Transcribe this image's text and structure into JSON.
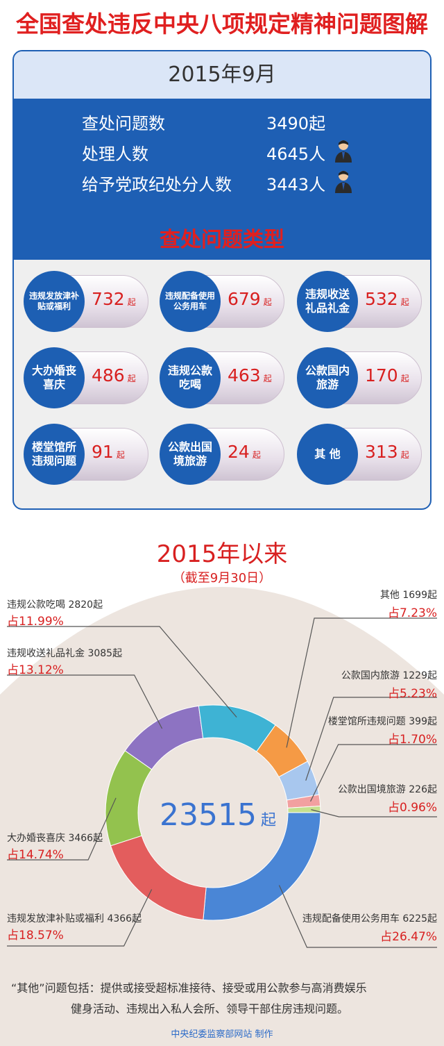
{
  "title": "全国查处违反中央八项规定精神问题图解",
  "month": {
    "label": "2015年9月",
    "stats": [
      {
        "label": "查处问题数",
        "value": "3490起",
        "icon": ""
      },
      {
        "label": "处理人数",
        "value": "4645人",
        "icon": "person-icon"
      },
      {
        "label": "给予党政纪处分人数",
        "value": "3443人",
        "icon": "person-icon"
      }
    ]
  },
  "types": {
    "title": "查处问题类型",
    "unit": "起",
    "items": [
      {
        "name": "违规发放津补贴或福利",
        "value": "732"
      },
      {
        "name": "违规配备使用公务用车",
        "value": "679"
      },
      {
        "name": "违规收送礼品礼金",
        "value": "532"
      },
      {
        "name": "大办婚丧喜庆",
        "value": "486"
      },
      {
        "name": "违规公款吃喝",
        "value": "463"
      },
      {
        "name": "公款国内旅游",
        "value": "170"
      },
      {
        "name": "楼堂馆所违规问题",
        "value": "91"
      },
      {
        "name": "公款出国境旅游",
        "value": "24"
      },
      {
        "name": "其 他",
        "value": "313"
      }
    ]
  },
  "since": {
    "title": "2015年以来",
    "subtitle": "（截至9月30日）",
    "total": "23515",
    "total_unit": "起"
  },
  "chart_data": {
    "type": "pie",
    "title": "2015年以来",
    "total": 23515,
    "slices": [
      {
        "name": "违规配备使用公务用车",
        "count": 6225,
        "count_label": "6225起",
        "pct_label": "占26.47%",
        "value": 26.47,
        "color": "#4a86d6"
      },
      {
        "name": "违规发放津补贴或福利",
        "count": 4366,
        "count_label": "4366起",
        "pct_label": "占18.57%",
        "value": 18.57,
        "color": "#e35d5d"
      },
      {
        "name": "大办婚丧喜庆",
        "count": 3466,
        "count_label": "3466起",
        "pct_label": "占14.74%",
        "value": 14.74,
        "color": "#93c24e"
      },
      {
        "name": "违规收送礼品礼金",
        "count": 3085,
        "count_label": "3085起",
        "pct_label": "占13.12%",
        "value": 13.12,
        "color": "#8d73c2"
      },
      {
        "name": "违规公款吃喝",
        "count": 2820,
        "count_label": "2820起",
        "pct_label": "占11.99%",
        "value": 11.99,
        "color": "#3eb3d4"
      },
      {
        "name": "其他",
        "count": 1699,
        "count_label": "1699起",
        "pct_label": "占7.23%",
        "value": 7.23,
        "color": "#f59a45"
      },
      {
        "name": "公款国内旅游",
        "count": 1229,
        "count_label": "1229起",
        "pct_label": "占5.23%",
        "value": 5.23,
        "color": "#a8c7ee"
      },
      {
        "name": "楼堂馆所违规问题",
        "count": 399,
        "count_label": "399起",
        "pct_label": "占1.70%",
        "value": 1.7,
        "color": "#f2a0a0"
      },
      {
        "name": "公款出国境旅游",
        "count": 226,
        "count_label": "226起",
        "pct_label": "占0.96%",
        "value": 0.96,
        "color": "#c5e08d"
      }
    ]
  },
  "note": {
    "line1": "“其他”问题包括：提供或接受超标准接待、接受或用公款参与高消费娱乐",
    "line2": "健身活动、违规出入私人会所、领导干部住房违规问题。"
  },
  "credit": "中央纪委监察部网站 制作"
}
